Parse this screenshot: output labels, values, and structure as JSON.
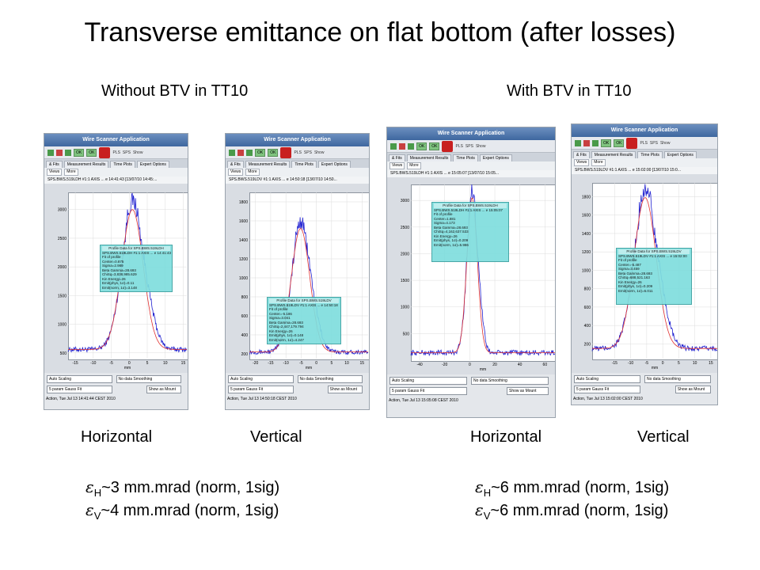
{
  "slide": {
    "title": "Transverse emittance on flat bottom (after losses)",
    "left_heading": "Without BTV in TT10",
    "right_heading": "With BTV in TT10",
    "captions": [
      "Horizontal",
      "Vertical",
      "Horizontal",
      "Vertical"
    ],
    "emittance_left": [
      {
        "sub": "H",
        "text": "~3 mm.mrad (norm, 1sig)"
      },
      {
        "sub": "V",
        "text": "~4 mm.mrad (norm, 1sig)"
      }
    ],
    "emittance_right": [
      {
        "sub": "H",
        "text": "~6 mm.mrad (norm, 1sig)"
      },
      {
        "sub": "V",
        "text": "~6 mm.mrad (norm, 1sig)"
      }
    ],
    "epsilon_symbol": "ε"
  },
  "app": {
    "window_title": "Wire Scanner Application",
    "toolbar": {
      "ok1": "OK",
      "ok2": "OK",
      "pls": "PLS",
      "sps": "SPS",
      "show": "Show"
    },
    "tabs": [
      "& Fits",
      "Measurement Results",
      "Time Plots",
      "Expert Options"
    ],
    "views_label": "Views",
    "more_label": "More",
    "controls": {
      "scaling": "Auto Scaling",
      "smoothing": "No data Smoothing",
      "fit": "5 param Gauss Fit",
      "show_as": "Show as Mount"
    },
    "x_unit": "mm",
    "colors": {
      "data": "#2020d0",
      "fit": "#e03030",
      "legend": "#7fdede"
    }
  },
  "screenshots": [
    {
      "header": "SPS.BWS.519LDH #1:1 AXIS ... e 14:41:43 [13/07/10 14:45:...",
      "footer": "Action, Tue Jul 13 14:41:44 CEST 2010",
      "legend": [
        "Profile Data for SPS.BWS.519LDH",
        "SPS.BWS.519LDH #1:1 AXIS ... e 14:41:43",
        "Fit of profile",
        "Center=0.875",
        "Sigma=2.989",
        "Beta Gamma=28.693",
        "ChiSq=3,838,985.629",
        "Kin Energy=26",
        "Emit(phys, 1σ)=0.11",
        "Emit(norm, 1σ)=3.148"
      ],
      "chart_data": {
        "type": "line",
        "xlim": [
          -17,
          16
        ],
        "ylim": [
          400,
          3300
        ],
        "xticks": [
          -15,
          -10,
          -5,
          0,
          5,
          10,
          15
        ],
        "yticks": [
          500,
          1000,
          1500,
          2000,
          2500,
          3000
        ],
        "center": 0.875,
        "sigma": 2.989,
        "peak": 3000,
        "baseline": 560,
        "series": [
          {
            "name": "SPS.BWS.519LDH #1:1 AXIS"
          },
          {
            "name": "Fit of profile"
          }
        ]
      }
    },
    {
      "header": "SPS.BWS.519LDV #1:1 AXIS ... e 14:50:18 [13/07/10 14:50...",
      "footer": "Action, Tue Jul 13 14:50:18 CEST 2010",
      "legend": [
        "Profile Data for SPS.BWS.519LDV",
        "SPS.BWS.519LDV #1:1 AXIS ... e 14:50:18",
        "Fit of profile",
        "Center=-5.186",
        "Sigma=3.041",
        "Beta Gamma=28.693",
        "ChiSq=2,447,179.794",
        "Kin Energy=26",
        "Emit(phys, 1σ)=0.148",
        "Emit(norm, 1σ)=4.247"
      ],
      "chart_data": {
        "type": "line",
        "xlim": [
          -22,
          17
        ],
        "ylim": [
          150,
          1900
        ],
        "xticks": [
          -20,
          -15,
          -10,
          -5,
          0,
          5,
          10,
          15
        ],
        "yticks": [
          200,
          400,
          600,
          800,
          1000,
          1200,
          1400,
          1600,
          1800
        ],
        "center": -5.186,
        "sigma": 3.041,
        "peak": 1520,
        "baseline": 220,
        "series": [
          {
            "name": "SPS.BWS.519LDV #1:1 AXIS"
          },
          {
            "name": "Fit of profile"
          }
        ]
      }
    },
    {
      "header": "SPS.BWS.519LDH #1:1 AXIS ... e 15:05:07 [13/07/10 15:05...",
      "footer": "Action, Tue Jul 13 15:05:08 CEST 2010",
      "legend": [
        "Profile Data for SPS.BWS.519LDH",
        "SPS.BWS.519LDH #1:1 AXIS ... e 15:05:07",
        "Fit of profile",
        "Center=1.881",
        "Sigma=4.173",
        "Beta Gamma=28.693",
        "ChiSq=4,162,637.533",
        "Kin Energy=26",
        "Emit(phys, 1σ)=0.209",
        "Emit(norm, 1σ)=5.986"
      ],
      "chart_data": {
        "type": "line",
        "xlim": [
          -47,
          68
        ],
        "ylim": [
          0,
          3300
        ],
        "xticks": [
          -40,
          -20,
          0,
          20,
          40,
          60
        ],
        "yticks": [
          500,
          1000,
          1500,
          2000,
          2500,
          3000
        ],
        "center": 1.881,
        "sigma": 4.173,
        "peak": 3050,
        "baseline": 140,
        "series": [
          {
            "name": "SPS.BWS.519LDH #1:1 AXIS"
          },
          {
            "name": "Fit of profile"
          }
        ]
      }
    },
    {
      "header": "SPS.BWS.519LDV #1:1 AXIS ... e 15:02:00 [13/07/10 15:0...",
      "footer": "Action, Tue Jul 13 15:02:00 CEST 2010",
      "legend": [
        "Profile Data for SPS.BWS.519LDV",
        "SPS.BWS.519LDV #1:1 AXIS ... e 15:02:00",
        "Fit of profile",
        "Center=-5.487",
        "Sigma=3.459",
        "Beta Gamma=28.693",
        "ChiSq=688,521.163",
        "Kin Energy=26",
        "Emit(phys, 1σ)=0.209",
        "Emit(norm, 1σ)=6.011"
      ],
      "chart_data": {
        "type": "line",
        "xlim": [
          -22,
          17
        ],
        "ylim": [
          40,
          1950
        ],
        "xticks": [
          -15,
          -10,
          -5,
          0,
          5,
          10,
          15
        ],
        "yticks": [
          200,
          400,
          600,
          800,
          1000,
          1200,
          1400,
          1600,
          1800
        ],
        "center": -5.487,
        "sigma": 3.459,
        "peak": 1790,
        "baseline": 150,
        "series": [
          {
            "name": "SPS.BWS.519LDV #1:1 AXIS"
          },
          {
            "name": "Fit of profile"
          }
        ]
      }
    }
  ]
}
